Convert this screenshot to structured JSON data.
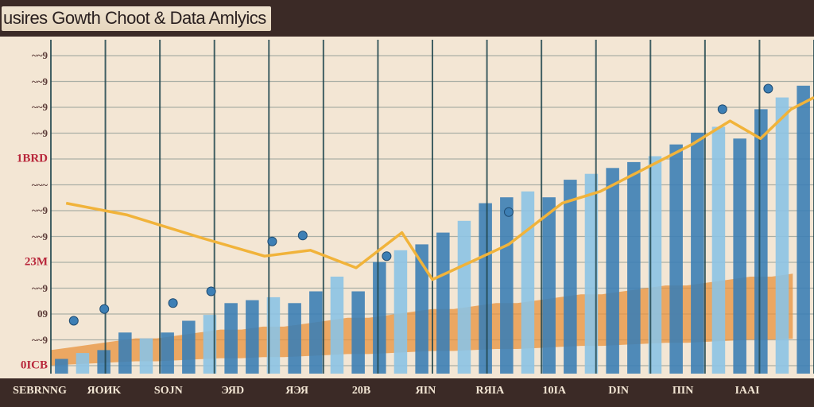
{
  "title": "usires Gowth Choot & Data Amlyics",
  "colors": {
    "background": "#f3e6d4",
    "frame": "#3b2a26",
    "bar_blue": "#3d7fb5",
    "bar_light": "#8cc3e4",
    "area_orange": "#e8913c",
    "line_gold": "#f1b33a",
    "grid_dark": "#21474f",
    "axis_label": "#5b3b38",
    "accent_red": "#b8263a"
  },
  "y_tick_labels": [
    {
      "text": "~~9",
      "red": false
    },
    {
      "text": "~~9",
      "red": false
    },
    {
      "text": "~~9",
      "red": false
    },
    {
      "text": "~~9",
      "red": false
    },
    {
      "text": "1BRD",
      "red": true
    },
    {
      "text": "~~~",
      "red": false
    },
    {
      "text": "~~9",
      "red": false
    },
    {
      "text": "~~9",
      "red": false
    },
    {
      "text": "23M",
      "red": true
    },
    {
      "text": "~~9",
      "red": false
    },
    {
      "text": "09",
      "red": false
    },
    {
      "text": "~~9",
      "red": false
    },
    {
      "text": "0ICB",
      "red": true
    }
  ],
  "x_tick_labels": [
    "SEBRNNG",
    "ЯOИK",
    "SOJN",
    "ЭЯD",
    "ЯЭЯ",
    "20B",
    "ЯIN",
    "RЯIA",
    "10IA",
    "DIN",
    "ПIN",
    "IAAI"
  ],
  "chart_data": {
    "type": "bar",
    "title": "usires Gowth Choot & Data Amlyics",
    "xlabel": "",
    "ylabel": "",
    "ylim": [
      0,
      100
    ],
    "grid": true,
    "categories": [
      "SEBRNNG",
      "ЯOИK",
      "SOJN",
      "ЭЯD",
      "ЯЭЯ",
      "20B",
      "ЯIN",
      "RЯIA",
      "10IA",
      "DIN",
      "ПIN",
      "IAAI"
    ],
    "bars": [
      5,
      7,
      8,
      14,
      12,
      14,
      18,
      20,
      24,
      25,
      26,
      24,
      28,
      33,
      28,
      38,
      42,
      44,
      48,
      52,
      58,
      60,
      62,
      60,
      66,
      68,
      70,
      72,
      74,
      78,
      82,
      84,
      80,
      90,
      94,
      98
    ],
    "area": [
      8,
      9,
      10,
      11,
      12,
      12,
      13,
      14,
      15,
      15,
      16,
      16,
      17,
      18,
      19,
      19,
      20,
      21,
      22,
      22,
      23,
      24,
      24,
      25,
      26,
      27,
      27,
      28,
      29,
      30,
      30,
      31,
      32,
      33,
      33,
      34
    ],
    "line": [
      [
        2,
        58
      ],
      [
        10,
        54
      ],
      [
        20,
        46
      ],
      [
        28,
        40
      ],
      [
        34,
        42
      ],
      [
        40,
        36
      ],
      [
        46,
        48
      ],
      [
        50,
        32
      ],
      [
        55,
        38
      ],
      [
        60,
        44
      ],
      [
        67,
        58
      ],
      [
        72,
        62
      ],
      [
        78,
        70
      ],
      [
        84,
        78
      ],
      [
        89,
        86
      ],
      [
        93,
        80
      ],
      [
        97,
        90
      ],
      [
        100,
        94
      ]
    ],
    "markers": [
      [
        3,
        18
      ],
      [
        7,
        22
      ],
      [
        16,
        24
      ],
      [
        21,
        28
      ],
      [
        29,
        45
      ],
      [
        33,
        47
      ],
      [
        44,
        40
      ],
      [
        60,
        55
      ],
      [
        88,
        90
      ],
      [
        94,
        97
      ]
    ]
  }
}
